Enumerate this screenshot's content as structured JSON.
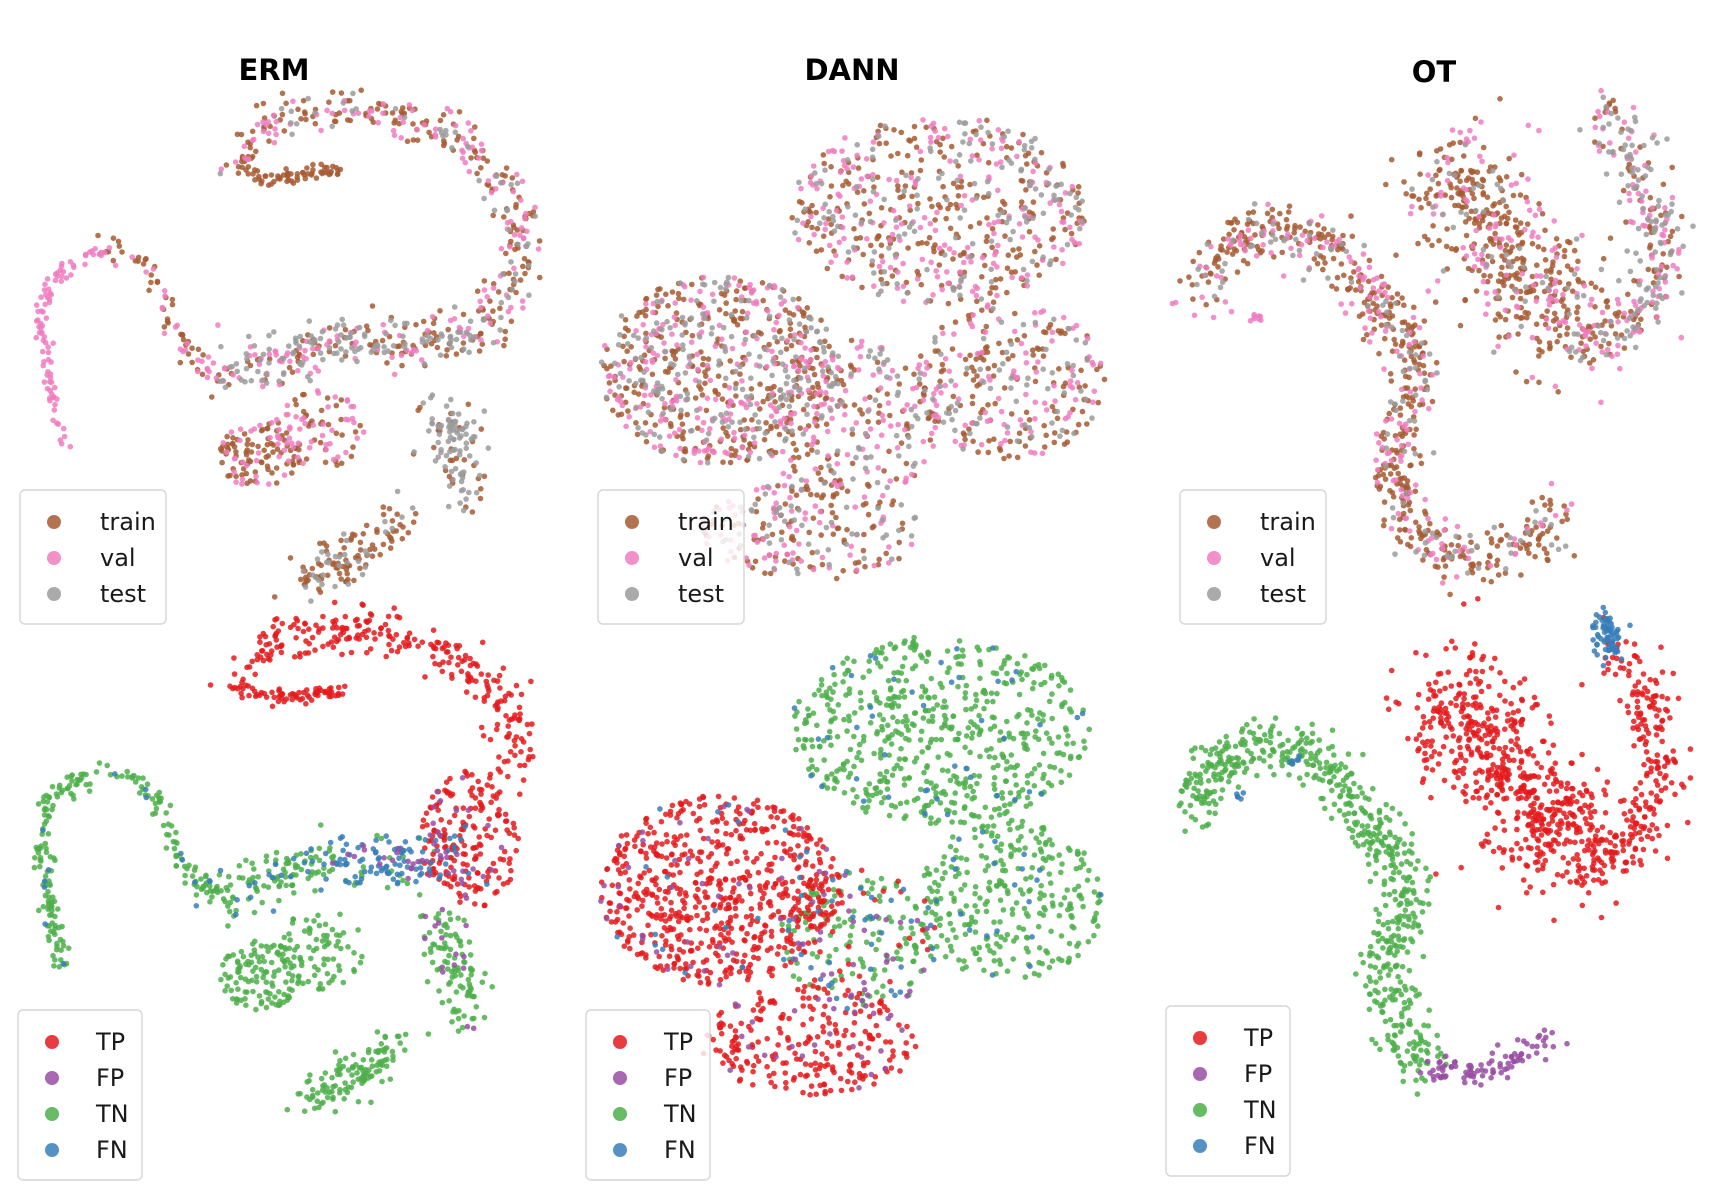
{
  "colors": {
    "train": "#a65a33",
    "val": "#f07cc0",
    "test": "#9b9b9b",
    "TP": "#e41a1c",
    "FP": "#984ea3",
    "TN": "#4daf4a",
    "FN": "#377eb8"
  },
  "chart_data": [
    {
      "type": "scatter",
      "title": "ERM",
      "row": "split",
      "legend": {
        "entries": [
          "train",
          "val",
          "test"
        ],
        "placement": "bottom-left"
      },
      "grid": false,
      "axes": false,
      "series": [
        {
          "name": "train",
          "points_estimated": "dense clusters along the outer arc and lower lobes"
        },
        {
          "name": "val",
          "points_estimated": "spread along the left hook and the outer arc"
        },
        {
          "name": "test",
          "points_estimated": "band through the center-right and lower-right spur"
        }
      ]
    },
    {
      "type": "scatter",
      "title": "DANN",
      "row": "split",
      "legend": {
        "entries": [
          "train",
          "val",
          "test"
        ],
        "placement": "bottom-left"
      },
      "grid": false,
      "axes": false,
      "series": [
        {
          "name": "train"
        },
        {
          "name": "val"
        },
        {
          "name": "test"
        }
      ]
    },
    {
      "type": "scatter",
      "title": "OT",
      "row": "split",
      "legend": {
        "entries": [
          "train",
          "val",
          "test"
        ],
        "placement": "bottom-left"
      },
      "grid": false,
      "axes": false,
      "series": [
        {
          "name": "train"
        },
        {
          "name": "val"
        },
        {
          "name": "test"
        }
      ]
    },
    {
      "type": "scatter",
      "title": "",
      "row": "confusion",
      "legend": {
        "entries": [
          "TP",
          "FP",
          "TN",
          "FN"
        ],
        "placement": "bottom-left"
      },
      "grid": false,
      "axes": false,
      "series": [
        {
          "name": "TP"
        },
        {
          "name": "FP"
        },
        {
          "name": "TN"
        },
        {
          "name": "FN"
        }
      ]
    },
    {
      "type": "scatter",
      "title": "",
      "row": "confusion",
      "legend": {
        "entries": [
          "TP",
          "FP",
          "TN",
          "FN"
        ],
        "placement": "bottom-left"
      },
      "grid": false,
      "axes": false,
      "series": [
        {
          "name": "TP"
        },
        {
          "name": "FP"
        },
        {
          "name": "TN"
        },
        {
          "name": "FN"
        }
      ]
    },
    {
      "type": "scatter",
      "title": "",
      "row": "confusion",
      "legend": {
        "entries": [
          "TP",
          "FP",
          "TN",
          "FN"
        ],
        "placement": "bottom-left"
      },
      "grid": false,
      "axes": false,
      "series": [
        {
          "name": "TP"
        },
        {
          "name": "FP"
        },
        {
          "name": "TN"
        },
        {
          "name": "FN"
        }
      ]
    }
  ]
}
